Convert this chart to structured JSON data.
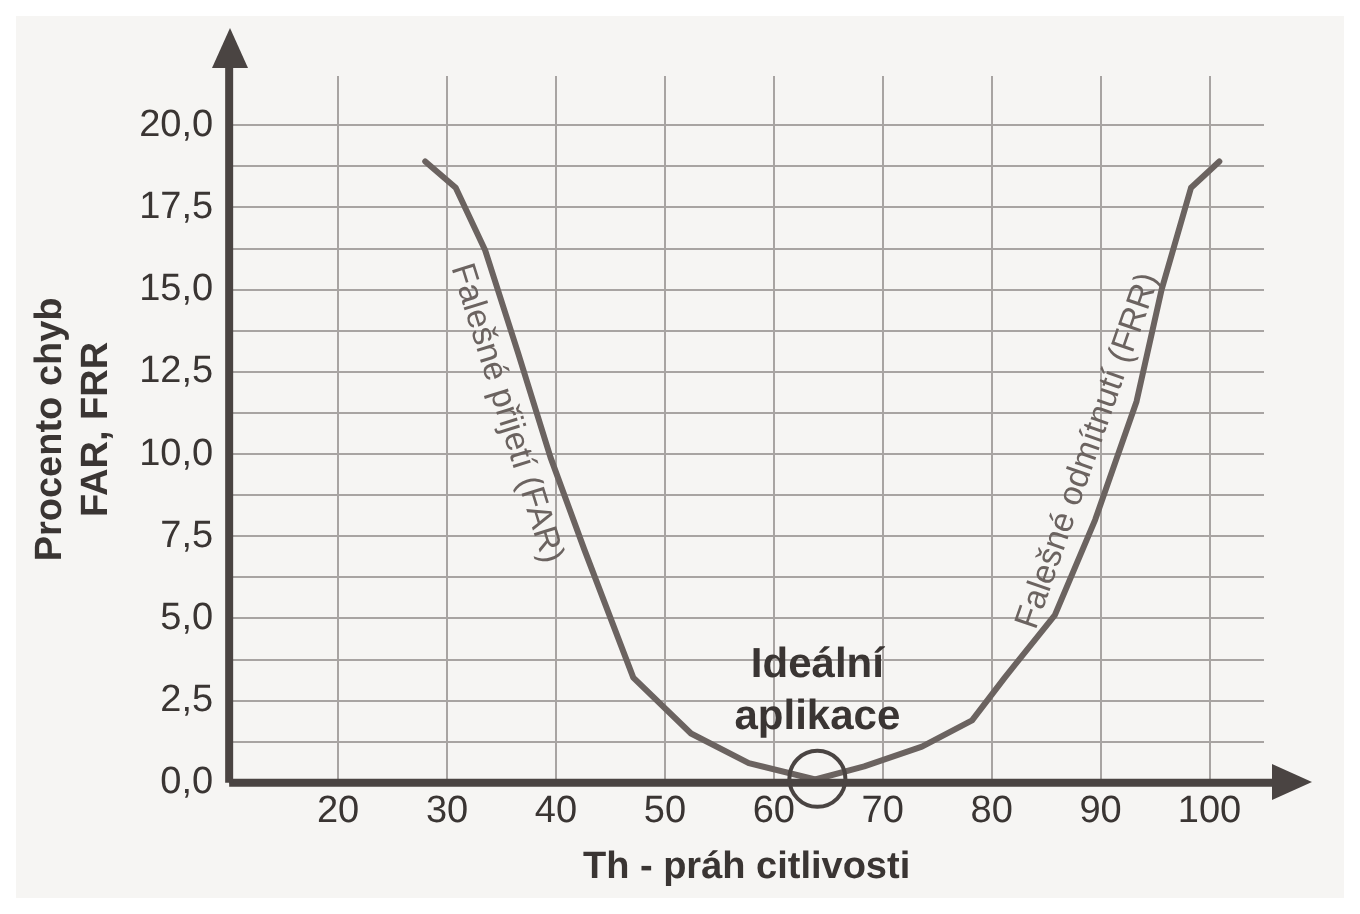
{
  "chart_data": {
    "type": "line",
    "xlabel": "Th - práh citlivosti",
    "ylabel": "Procento chyb FAR, FRR",
    "xlim": [
      10,
      105
    ],
    "xticks": [
      20,
      30,
      40,
      50,
      60,
      70,
      80,
      90,
      100
    ],
    "ylim": [
      0,
      21.5
    ],
    "yticks": [
      {
        "value": 0,
        "label": "0,0"
      },
      {
        "value": 1.25,
        "label": null
      },
      {
        "value": 2.5,
        "label": "2,5"
      },
      {
        "value": 3.75,
        "label": null
      },
      {
        "value": 5,
        "label": "5,0"
      },
      {
        "value": 6.25,
        "label": null
      },
      {
        "value": 7.5,
        "label": "7,5"
      },
      {
        "value": 8.75,
        "label": null
      },
      {
        "value": 10,
        "label": "10,0"
      },
      {
        "value": 11.25,
        "label": null
      },
      {
        "value": 12.5,
        "label": "12,5"
      },
      {
        "value": 13.75,
        "label": null
      },
      {
        "value": 15,
        "label": "15,0"
      },
      {
        "value": 16.25,
        "label": null
      },
      {
        "value": 17.5,
        "label": "17,5"
      },
      {
        "value": 18.75,
        "label": null
      },
      {
        "value": 20,
        "label": "20,0"
      }
    ],
    "grid": true,
    "legend": false,
    "marker": "none",
    "line_style": "solid",
    "series": [
      {
        "name": "Falešné přijetí (FAR)",
        "color": "#6b6360",
        "x": [
          28,
          30.8,
          33.5,
          36.5,
          39.5,
          42.6,
          47.1,
          52.4,
          57.7,
          63.8
        ],
        "values": [
          18.9,
          18.1,
          16.2,
          13.1,
          9.9,
          7.1,
          3.2,
          1.5,
          0.6,
          0.1
        ]
      },
      {
        "name": "Falešné odmítnutí (FRR)",
        "color": "#6b6360",
        "x": [
          63.8,
          68.3,
          73.6,
          78.2,
          81.2,
          85.8,
          89.5,
          93.3,
          95.6,
          98.3,
          100.9
        ],
        "values": [
          0.1,
          0.5,
          1.1,
          1.9,
          3.2,
          5.1,
          8,
          11.6,
          15,
          18.1,
          18.9
        ]
      }
    ],
    "annotations": [
      {
        "text": "Ideální aplikace",
        "x": 64,
        "y": 0
      }
    ]
  }
}
